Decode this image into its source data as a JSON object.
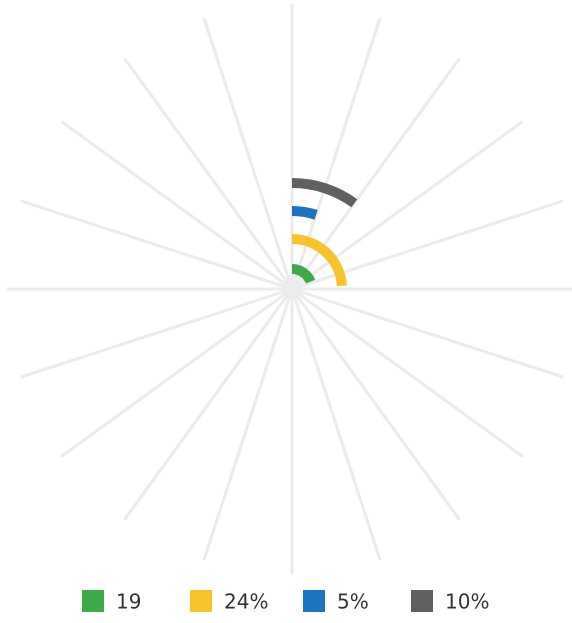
{
  "chart_data": {
    "type": "radial-bar",
    "ylim": [
      0,
      100
    ],
    "series": [
      {
        "name": "19",
        "color": "#3daa4b",
        "values": [
          19
        ]
      },
      {
        "name": "24%",
        "color": "#f9c32b",
        "values": [
          24
        ]
      },
      {
        "name": "5%",
        "color": "#1b74c1",
        "values": [
          5
        ]
      },
      {
        "name": "10%",
        "color": "#606062",
        "values": [
          10
        ]
      }
    ],
    "legend": "bottom"
  }
}
